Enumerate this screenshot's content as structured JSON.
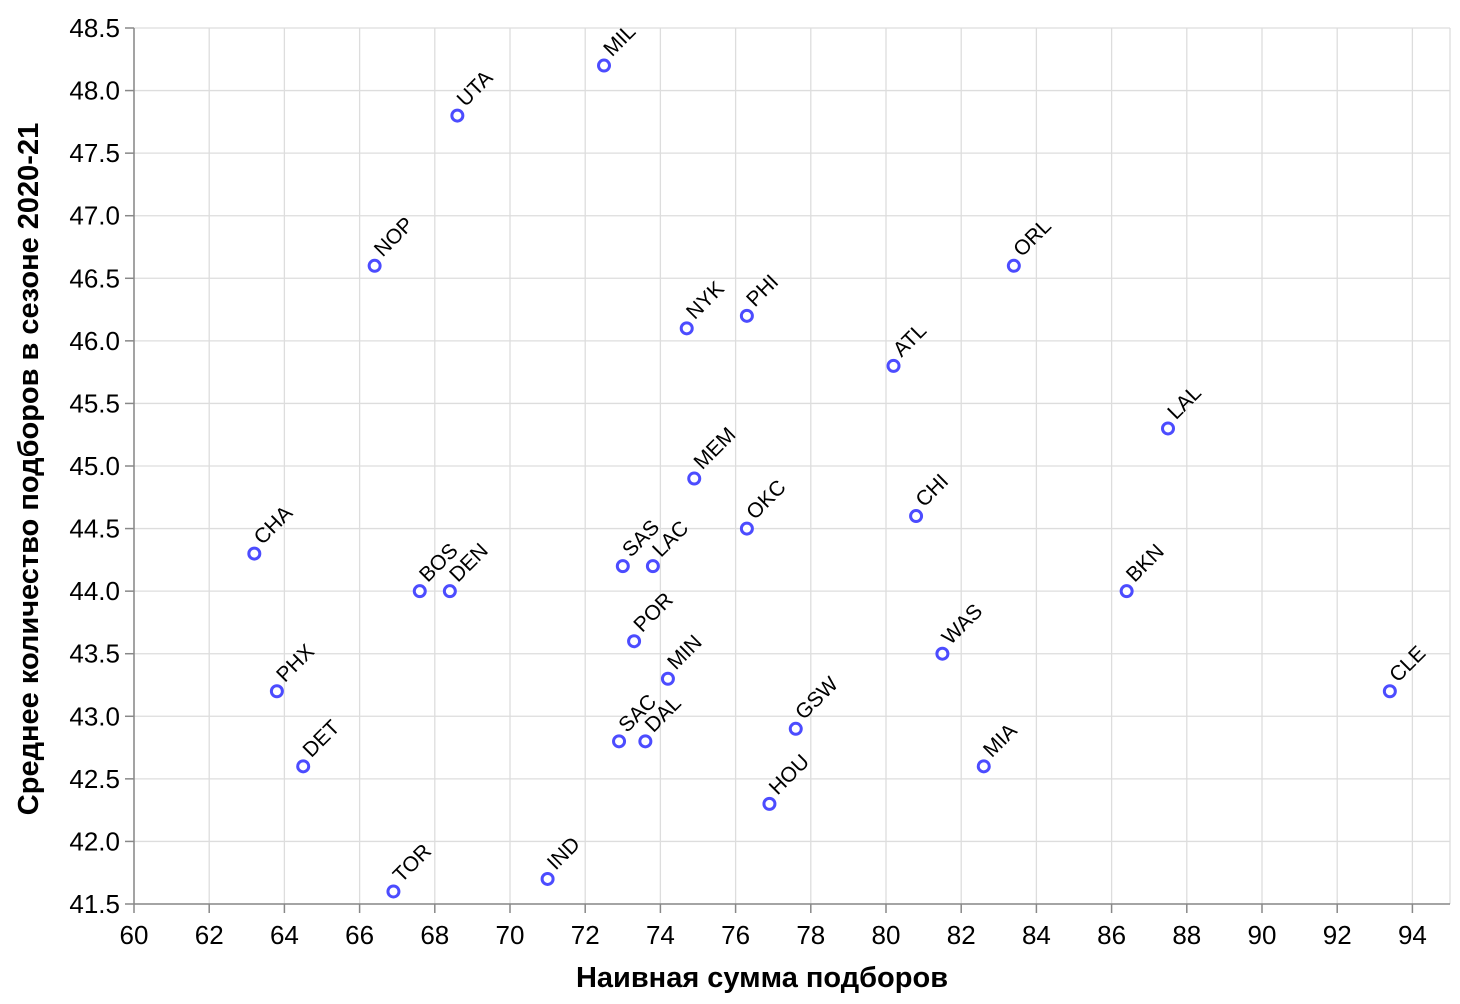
{
  "chart_data": {
    "type": "scatter",
    "xlabel": "Наивная сумма подборов",
    "ylabel": "Среднее количество подборов в сезоне 2020-21",
    "xlim": [
      60,
      95
    ],
    "ylim": [
      41.5,
      48.5
    ],
    "x_ticks": [
      60,
      62,
      64,
      66,
      68,
      70,
      72,
      74,
      76,
      78,
      80,
      82,
      84,
      86,
      88,
      90,
      92,
      94
    ],
    "y_ticks": [
      41.5,
      42.0,
      42.5,
      43.0,
      43.5,
      44.0,
      44.5,
      45.0,
      45.5,
      46.0,
      46.5,
      47.0,
      47.5,
      48.0,
      48.5
    ],
    "grid": true,
    "marker": "open-circle",
    "color": "#4c4cff",
    "points": [
      {
        "label": "MIL",
        "x": 72.5,
        "y": 48.2
      },
      {
        "label": "UTA",
        "x": 68.6,
        "y": 47.8
      },
      {
        "label": "NOP",
        "x": 66.4,
        "y": 46.6
      },
      {
        "label": "ORL",
        "x": 83.4,
        "y": 46.6
      },
      {
        "label": "PHI",
        "x": 76.3,
        "y": 46.2
      },
      {
        "label": "NYK",
        "x": 74.7,
        "y": 46.1
      },
      {
        "label": "ATL",
        "x": 80.2,
        "y": 45.8
      },
      {
        "label": "LAL",
        "x": 87.5,
        "y": 45.3
      },
      {
        "label": "MEM",
        "x": 74.9,
        "y": 44.9
      },
      {
        "label": "CHI",
        "x": 80.8,
        "y": 44.6
      },
      {
        "label": "OKC",
        "x": 76.3,
        "y": 44.5
      },
      {
        "label": "CHA",
        "x": 63.2,
        "y": 44.3
      },
      {
        "label": "SAS",
        "x": 73.0,
        "y": 44.2
      },
      {
        "label": "LAC",
        "x": 73.8,
        "y": 44.2
      },
      {
        "label": "BOS",
        "x": 67.6,
        "y": 44.0
      },
      {
        "label": "DEN",
        "x": 68.4,
        "y": 44.0
      },
      {
        "label": "BKN",
        "x": 86.4,
        "y": 44.0
      },
      {
        "label": "POR",
        "x": 73.3,
        "y": 43.6
      },
      {
        "label": "WAS",
        "x": 81.5,
        "y": 43.5
      },
      {
        "label": "MIN",
        "x": 74.2,
        "y": 43.3
      },
      {
        "label": "PHX",
        "x": 63.8,
        "y": 43.2
      },
      {
        "label": "CLE",
        "x": 93.4,
        "y": 43.2
      },
      {
        "label": "GSW",
        "x": 77.6,
        "y": 42.9
      },
      {
        "label": "SAC",
        "x": 72.9,
        "y": 42.8
      },
      {
        "label": "DAL",
        "x": 73.6,
        "y": 42.8
      },
      {
        "label": "DET",
        "x": 64.5,
        "y": 42.6
      },
      {
        "label": "MIA",
        "x": 82.6,
        "y": 42.6
      },
      {
        "label": "HOU",
        "x": 76.9,
        "y": 42.3
      },
      {
        "label": "IND",
        "x": 71.0,
        "y": 41.7
      },
      {
        "label": "TOR",
        "x": 66.9,
        "y": 41.6
      }
    ]
  }
}
